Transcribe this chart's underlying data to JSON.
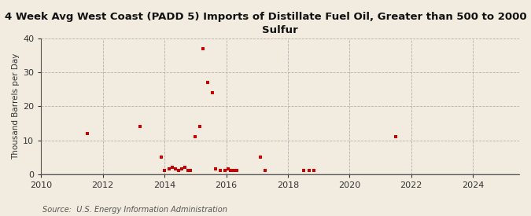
{
  "title": "4 Week Avg West Coast (PADD 5) Imports of Distillate Fuel Oil, Greater than 500 to 2000 ppm\nSulfur",
  "ylabel": "Thousand Barrels per Day",
  "source": "Source:  U.S. Energy Information Administration",
  "background_color": "#f2ece0",
  "plot_background_color": "#f2ece0",
  "marker_color": "#cc0000",
  "xlim": [
    2010,
    2025.5
  ],
  "ylim": [
    0,
    40
  ],
  "yticks": [
    0,
    10,
    20,
    30,
    40
  ],
  "xticks": [
    2010,
    2012,
    2014,
    2016,
    2018,
    2020,
    2022,
    2024
  ],
  "data_x": [
    2011.5,
    2013.2,
    2013.9,
    2014.0,
    2014.15,
    2014.25,
    2014.35,
    2014.45,
    2014.55,
    2014.65,
    2014.75,
    2014.85,
    2015.0,
    2015.15,
    2015.25,
    2015.4,
    2015.55,
    2015.65,
    2015.8,
    2015.95,
    2016.05,
    2016.15,
    2016.25,
    2016.35,
    2017.1,
    2017.25,
    2018.5,
    2018.7,
    2018.85,
    2021.5
  ],
  "data_y": [
    12,
    14,
    5,
    1,
    1.5,
    2,
    1.5,
    1,
    1.5,
    2,
    1,
    1,
    11,
    14,
    37,
    27,
    24,
    1.5,
    1,
    1,
    1.5,
    1,
    1,
    1,
    5,
    1,
    1,
    1,
    1,
    11
  ],
  "grid_color": "#aaaaaa",
  "grid_linestyle": "--",
  "grid_linewidth": 0.6,
  "spine_color": "#555555",
  "title_fontsize": 9.5,
  "ylabel_fontsize": 7.5,
  "tick_fontsize": 8,
  "source_fontsize": 7
}
